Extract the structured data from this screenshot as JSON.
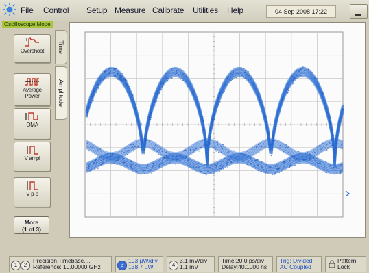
{
  "menu": {
    "items": [
      "File",
      "Control",
      "Setup",
      "Measure",
      "Calibrate",
      "Utilities",
      "Help"
    ],
    "datetime": "04 Sep 2008  17:22",
    "mode": "Oscilloscope Mode"
  },
  "tabs": {
    "time": "Time",
    "amplitude": "Amplitude"
  },
  "measurements": {
    "overshoot": "Overshoot",
    "average_power": "Average\nPower",
    "oma": "OMA",
    "vampl": "V ampl",
    "vpp": "V p-p",
    "more_line1": "More",
    "more_line2": "(1 of 3)"
  },
  "status": {
    "channels_12": [
      "1",
      "2"
    ],
    "timebase_line1": "Precision Timebase....",
    "timebase_line2": "Reference: 10.00000 GHz",
    "ch3_num": "3",
    "ch3_line1": "193 µW/div",
    "ch3_line2": "138.7 µW",
    "ch4_num": "4",
    "ch4_line1": "3.1 mV/div",
    "ch4_line2": "1.1 mV",
    "time_line1": "Time:20.0 ps/div",
    "time_line2": "Delay:40.1000 ns",
    "trig_line1": "Trig: Divided",
    "trig_line2": "AC Coupled",
    "pattern_line1": "Pattern",
    "pattern_line2": "Lock"
  },
  "colors": {
    "trace": "#2c6fd4",
    "mode_badge": "#a8c43a",
    "marker": "#2c6fd4"
  }
}
